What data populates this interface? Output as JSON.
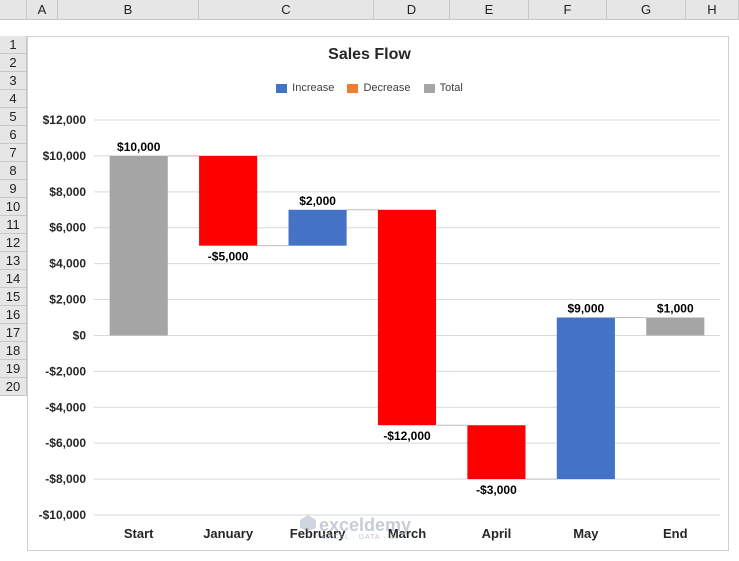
{
  "sheet": {
    "columns": [
      "A",
      "B",
      "C",
      "D",
      "E",
      "F",
      "G",
      "H"
    ],
    "rows": [
      "1",
      "2",
      "3",
      "4",
      "5",
      "6",
      "7",
      "8",
      "9",
      "10",
      "11",
      "12",
      "13",
      "14",
      "15",
      "16",
      "17",
      "18",
      "19",
      "20"
    ]
  },
  "watermark": {
    "brand": "exceldemy",
    "tagline": "EXCEL · DATA · BI"
  },
  "chart_data": {
    "type": "waterfall",
    "title": "Sales Flow",
    "legend": [
      {
        "name": "Increase",
        "color": "#4472C4"
      },
      {
        "name": "Decrease",
        "color": "#ED7D31"
      },
      {
        "name": "Total",
        "color": "#A5A5A5"
      }
    ],
    "categories": [
      "Start",
      "January",
      "February",
      "March",
      "April",
      "May",
      "End"
    ],
    "bars": [
      {
        "category": "Start",
        "from": 0,
        "to": 10000,
        "label": "$10,000",
        "kind": "total",
        "color": "#A5A5A5"
      },
      {
        "category": "January",
        "from": 10000,
        "to": 5000,
        "label": "-$5,000",
        "kind": "decrease",
        "color": "#FF0000"
      },
      {
        "category": "February",
        "from": 5000,
        "to": 7000,
        "label": "$2,000",
        "kind": "increase",
        "color": "#4472C4"
      },
      {
        "category": "March",
        "from": 7000,
        "to": -5000,
        "label": "-$12,000",
        "kind": "decrease",
        "color": "#FF0000"
      },
      {
        "category": "April",
        "from": -5000,
        "to": -8000,
        "label": "-$3,000",
        "kind": "decrease",
        "color": "#FF0000"
      },
      {
        "category": "May",
        "from": -8000,
        "to": 1000,
        "label": "$9,000",
        "kind": "increase",
        "color": "#4472C4"
      },
      {
        "category": "End",
        "from": 0,
        "to": 1000,
        "label": "$1,000",
        "kind": "total",
        "color": "#A5A5A5"
      }
    ],
    "ylim": [
      -10000,
      12000
    ],
    "yticks": [
      12000,
      10000,
      8000,
      6000,
      4000,
      2000,
      0,
      -2000,
      -4000,
      -6000,
      -8000,
      -10000
    ],
    "ytick_labels": [
      "$12,000",
      "$10,000",
      "$8,000",
      "$6,000",
      "$4,000",
      "$2,000",
      "$0",
      "-$2,000",
      "-$4,000",
      "-$6,000",
      "-$8,000",
      "-$10,000"
    ],
    "grid": true
  }
}
